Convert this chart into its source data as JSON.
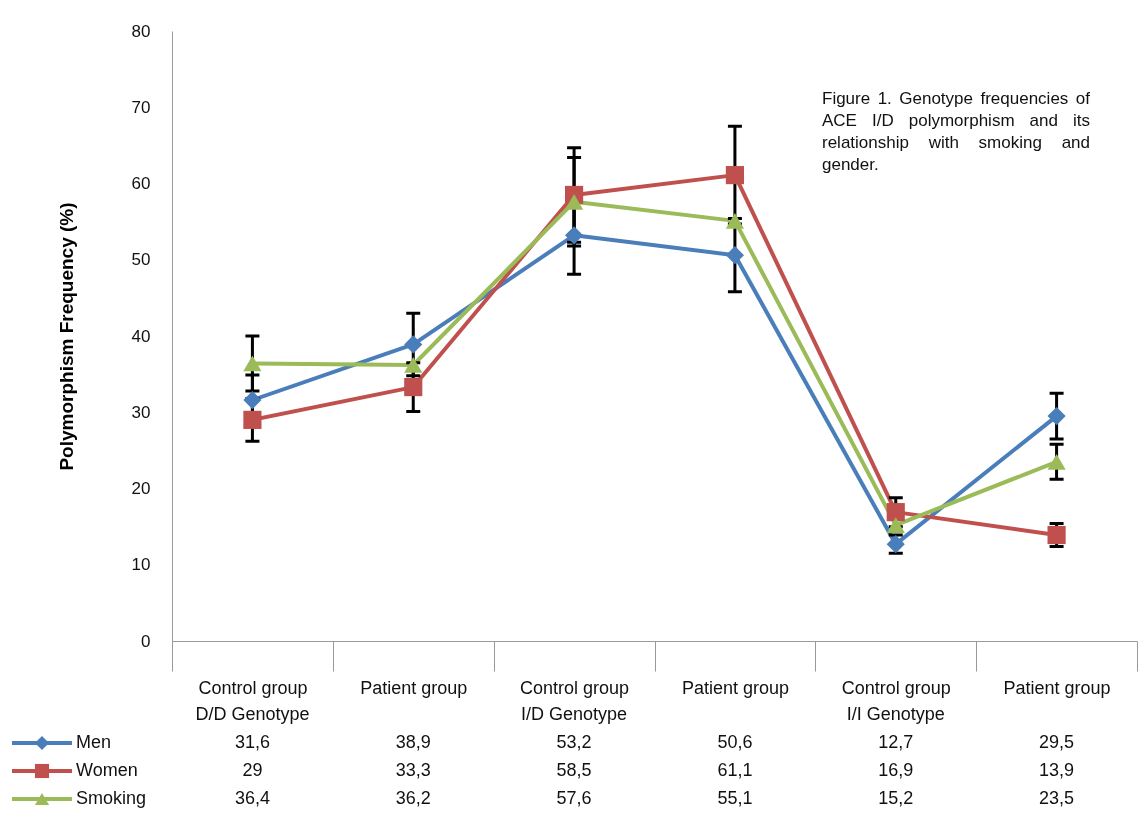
{
  "chart_data": {
    "type": "line",
    "title": "Figure 1. Genotype frequencies of ACE I/D polymorphism and its relationship with smoking and gender.",
    "ylabel": "Polymorphism  Frequency (%)",
    "categories": [
      "Control group",
      "Patient group",
      "Control group",
      "Patient group",
      "Control group",
      "Patient group"
    ],
    "annotations": [
      "D/D Genotype",
      "I/D Genotype",
      "I/I Genotype"
    ],
    "ylim": [
      0,
      80
    ],
    "yticks": [
      0,
      10,
      20,
      30,
      40,
      50,
      60,
      70,
      80
    ],
    "grid": false,
    "legend": "bottom",
    "line_style": "solid",
    "series": [
      {
        "name": "Men",
        "color": "#4a7ebb",
        "marker": "diamond",
        "values": [
          31.6,
          38.9,
          53.2,
          50.6,
          12.7,
          29.5
        ],
        "errors": [
          3.3,
          4.1,
          5.1,
          4.8,
          1.2,
          3
        ],
        "value_labels": [
          "31,6",
          "38,9",
          "53,2",
          "50,6",
          "12,7",
          "29,5"
        ]
      },
      {
        "name": "Women",
        "color": "#c0504d",
        "marker": "square",
        "values": [
          29,
          33.3,
          58.5,
          61.1,
          16.9,
          13.9
        ],
        "errors": [
          2.8,
          3.2,
          6.2,
          6.4,
          1.9,
          1.5
        ],
        "value_labels": [
          "29",
          "33,3",
          "58,5",
          "61,1",
          "16,9",
          "13,9"
        ]
      },
      {
        "name": "Smoking",
        "color": "#9bbb59",
        "marker": "triangle",
        "values": [
          36.4,
          36.2,
          57.6,
          55.1,
          15.2,
          23.5
        ],
        "errors": [
          3.6,
          null,
          5.8,
          null,
          null,
          2.3
        ],
        "value_labels": [
          "36,4",
          "36,2",
          "57,6",
          "55,1",
          "15,2",
          "23,5"
        ]
      }
    ]
  }
}
